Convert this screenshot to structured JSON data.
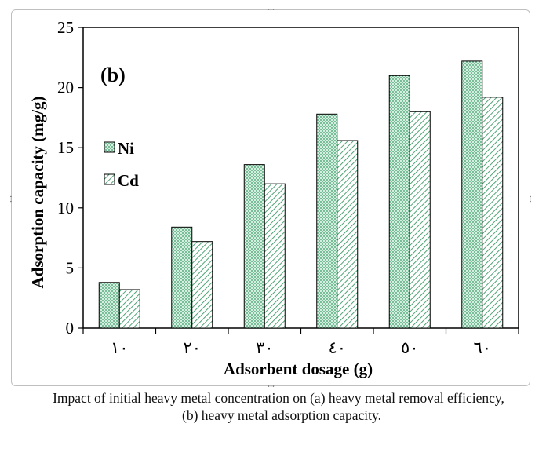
{
  "chart_data": {
    "type": "bar",
    "panel_label": "(b)",
    "xlabel": "Adsorbent dosage (g)",
    "ylabel": "Adsorption capacity (mg/g)",
    "categories": [
      "١٠",
      "٢٠",
      "٣٠",
      "٤٠",
      "٥٠",
      "٦٠"
    ],
    "ylim": [
      0,
      25
    ],
    "yticks": [
      "0",
      "5",
      "10",
      "15",
      "20",
      "25"
    ],
    "series": [
      {
        "name": "Ni",
        "values": [
          3.8,
          8.4,
          13.6,
          17.8,
          21.0,
          22.2
        ],
        "color": "#2e8b57",
        "fill": "#cfeedd"
      },
      {
        "name": "Cd",
        "values": [
          3.2,
          7.2,
          12.0,
          15.6,
          18.0,
          19.2
        ],
        "color": "#2e8b57",
        "fill": "#e6f3ec"
      }
    ],
    "legend_position": "left",
    "grid": false
  },
  "caption": {
    "line1": "Impact of initial heavy metal concentration on (a) heavy metal removal efficiency,",
    "line2": "(b) heavy  metal adsorption capacity."
  }
}
